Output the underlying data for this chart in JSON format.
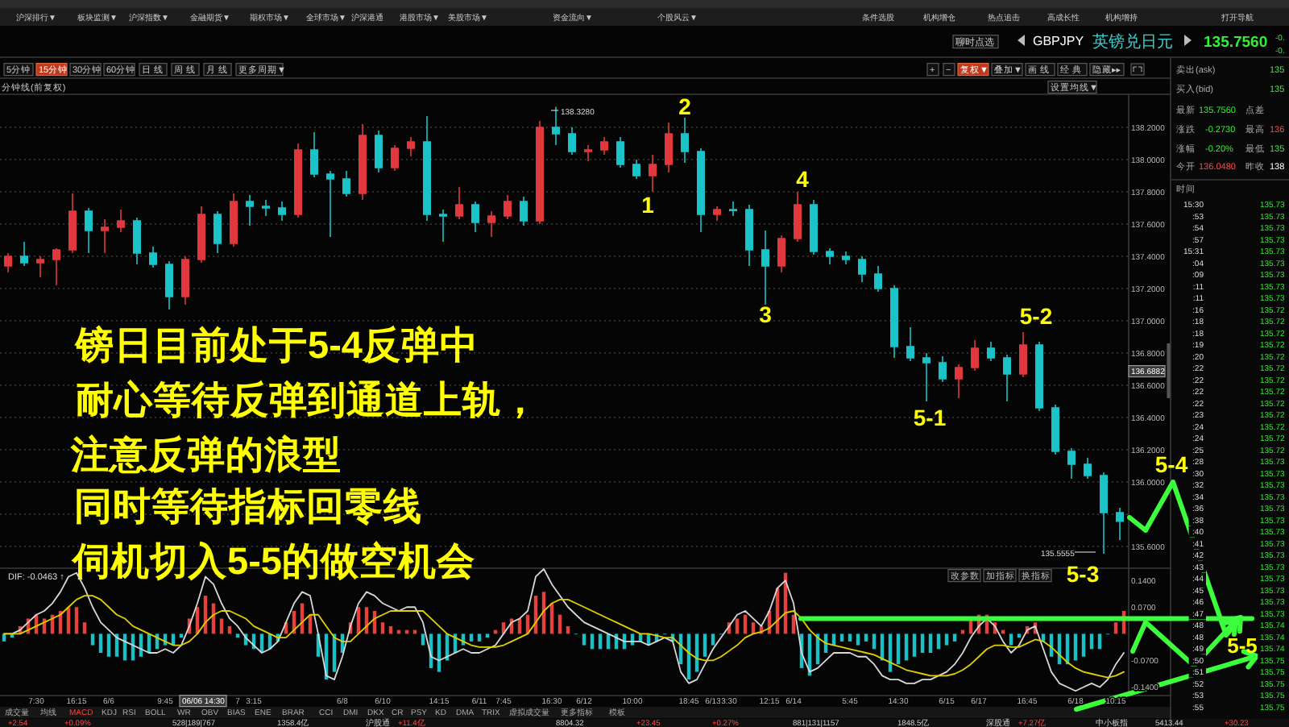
{
  "chart_data": [
    {
      "type": "candlestick",
      "title": "GBPJPY",
      "subtitle": "英镑兑日元",
      "categories": [
        null,
        null,
        null,
        null,
        null,
        null,
        null,
        null,
        null,
        null,
        null,
        null,
        null,
        null,
        null,
        null,
        null,
        null,
        null,
        null,
        null,
        null,
        null,
        null,
        null,
        null,
        null,
        null,
        null,
        null,
        null,
        null,
        null,
        null,
        null,
        null,
        null,
        null,
        null,
        null,
        null,
        null,
        null,
        null,
        null,
        null,
        null,
        null,
        null,
        null,
        null,
        null,
        null,
        null,
        null,
        null,
        null,
        null,
        null,
        null,
        null,
        null,
        null,
        null,
        null,
        null,
        null,
        null,
        null,
        null
      ],
      "ohlc": [
        [
          137.34,
          137.42,
          137.3,
          137.4
        ],
        [
          137.4,
          137.49,
          137.34,
          137.36
        ],
        [
          137.36,
          137.4,
          137.27,
          137.38
        ],
        [
          137.38,
          137.45,
          137.22,
          137.44
        ],
        [
          137.44,
          137.79,
          137.42,
          137.68
        ],
        [
          137.68,
          137.7,
          137.42,
          137.56
        ],
        [
          137.56,
          137.63,
          137.42,
          137.58
        ],
        [
          137.58,
          137.69,
          137.55,
          137.62
        ],
        [
          137.62,
          137.64,
          137.35,
          137.42
        ],
        [
          137.42,
          137.46,
          137.33,
          137.35
        ],
        [
          137.35,
          137.37,
          137.07,
          137.15
        ],
        [
          137.15,
          137.4,
          137.1,
          137.38
        ],
        [
          137.38,
          137.71,
          137.36,
          137.66
        ],
        [
          137.66,
          137.68,
          137.42,
          137.48
        ],
        [
          137.48,
          137.79,
          137.46,
          137.74
        ],
        [
          137.74,
          137.78,
          137.59,
          137.71
        ],
        [
          137.71,
          137.75,
          137.65,
          137.7
        ],
        [
          137.7,
          137.74,
          137.62,
          137.66
        ],
        [
          137.66,
          138.1,
          137.64,
          138.06
        ],
        [
          138.06,
          138.17,
          137.89,
          137.91
        ],
        [
          137.91,
          137.93,
          137.52,
          137.88
        ],
        [
          137.88,
          137.93,
          137.77,
          137.79
        ],
        [
          137.79,
          138.22,
          137.75,
          138.15
        ],
        [
          138.15,
          138.18,
          137.92,
          137.95
        ],
        [
          137.95,
          138.09,
          137.93,
          138.07
        ],
        [
          138.07,
          138.14,
          138.02,
          138.11
        ],
        [
          138.11,
          138.27,
          137.62,
          137.66
        ],
        [
          137.66,
          137.69,
          137.49,
          137.65
        ],
        [
          137.65,
          137.83,
          137.63,
          137.72
        ],
        [
          137.72,
          137.74,
          137.55,
          137.61
        ],
        [
          137.61,
          137.68,
          137.52,
          137.65
        ],
        [
          137.65,
          137.78,
          137.63,
          137.74
        ],
        [
          137.74,
          137.77,
          137.59,
          137.62
        ],
        [
          137.62,
          138.24,
          137.6,
          138.2
        ],
        [
          138.2,
          138.328,
          138.09,
          138.16
        ],
        [
          138.16,
          138.2,
          138.03,
          138.05
        ],
        [
          138.05,
          138.09,
          137.99,
          138.06
        ],
        [
          138.06,
          138.14,
          138.03,
          138.11
        ],
        [
          138.11,
          138.14,
          137.95,
          137.97
        ],
        [
          137.97,
          138.0,
          137.88,
          137.9
        ],
        [
          137.9,
          138.03,
          137.8,
          137.97
        ],
        [
          137.97,
          138.23,
          137.92,
          138.16
        ],
        [
          138.16,
          138.26,
          137.98,
          138.05
        ],
        [
          138.05,
          138.07,
          137.55,
          137.66
        ],
        [
          137.66,
          137.71,
          137.62,
          137.69
        ],
        [
          137.69,
          137.74,
          137.65,
          137.69
        ],
        [
          137.69,
          137.72,
          137.34,
          137.44
        ],
        [
          137.44,
          137.56,
          137.1,
          137.34
        ],
        [
          137.34,
          137.53,
          137.3,
          137.51
        ],
        [
          137.51,
          137.8,
          137.49,
          137.72
        ],
        [
          137.72,
          137.75,
          137.41,
          137.43
        ],
        [
          137.43,
          137.45,
          137.35,
          137.4
        ],
        [
          137.4,
          137.43,
          137.35,
          137.38
        ],
        [
          137.38,
          137.4,
          137.24,
          137.29
        ],
        [
          137.29,
          137.34,
          137.18,
          137.2
        ],
        [
          137.2,
          137.22,
          136.77,
          136.84
        ],
        [
          136.84,
          136.96,
          136.75,
          136.77
        ],
        [
          136.77,
          136.8,
          136.5,
          136.74
        ],
        [
          136.74,
          136.78,
          136.62,
          136.64
        ],
        [
          136.64,
          136.73,
          136.52,
          136.71
        ],
        [
          136.71,
          136.88,
          136.69,
          136.83
        ],
        [
          136.83,
          136.87,
          136.75,
          136.77
        ],
        [
          136.77,
          136.79,
          136.5,
          136.67
        ],
        [
          136.67,
          136.93,
          136.65,
          136.85
        ],
        [
          136.85,
          136.87,
          136.44,
          136.46
        ],
        [
          136.46,
          136.48,
          136.17,
          136.19
        ],
        [
          136.19,
          136.21,
          136.02,
          136.11
        ],
        [
          136.11,
          136.15,
          136.02,
          136.04
        ],
        [
          136.04,
          136.06,
          135.5555,
          135.81
        ],
        [
          135.81,
          135.84,
          135.64,
          135.756
        ]
      ],
      "colors": [
        "#e0383c",
        "#19c3c8",
        "#e0383c",
        "#e0383c",
        "#e0383c",
        "#19c3c8",
        "#e0383c",
        "#e0383c",
        "#19c3c8",
        "#19c3c8",
        "#19c3c8",
        "#e0383c",
        "#e0383c",
        "#19c3c8",
        "#e0383c",
        "#19c3c8",
        "#19c3c8",
        "#19c3c8",
        "#e0383c",
        "#19c3c8",
        "#19c3c8",
        "#19c3c8",
        "#e0383c",
        "#19c3c8",
        "#e0383c",
        "#e0383c",
        "#19c3c8",
        "#19c3c8",
        "#e0383c",
        "#19c3c8",
        "#e0383c",
        "#e0383c",
        "#19c3c8",
        "#e0383c",
        "#19c3c8",
        "#19c3c8",
        "#e0383c",
        "#e0383c",
        "#19c3c8",
        "#19c3c8",
        "#e0383c",
        "#e0383c",
        "#19c3c8",
        "#19c3c8",
        "#e0383c",
        "#19c3c8",
        "#19c3c8",
        "#19c3c8",
        "#e0383c",
        "#e0383c",
        "#19c3c8",
        "#19c3c8",
        "#19c3c8",
        "#19c3c8",
        "#19c3c8",
        "#19c3c8",
        "#19c3c8",
        "#19c3c8",
        "#19c3c8",
        "#e0383c",
        "#e0383c",
        "#19c3c8",
        "#19c3c8",
        "#e0383c",
        "#19c3c8",
        "#19c3c8",
        "#19c3c8",
        "#19c3c8",
        "#19c3c8",
        "#19c3c8"
      ],
      "ylim": [
        135.49,
        138.4
      ],
      "yticks": [
        {
          "value": 135.6,
          "label": "135.6000"
        },
        {
          "value": 135.8,
          "label": null
        },
        {
          "value": 136.0,
          "label": "136.0000"
        },
        {
          "value": 136.2,
          "label": "136.2000"
        },
        {
          "value": 136.4,
          "label": "136.4000"
        },
        {
          "value": 136.6,
          "label": "136.6000"
        },
        {
          "value": 136.8,
          "label": "136.8000"
        },
        {
          "value": 137.0,
          "label": "137.0000"
        },
        {
          "value": 137.2,
          "label": "137.2000"
        },
        {
          "value": 137.4,
          "label": "137.4000"
        },
        {
          "value": 137.6,
          "label": "137.6000"
        },
        {
          "value": 137.8,
          "label": "137.8000"
        },
        {
          "value": 138.0,
          "label": "138.0000"
        },
        {
          "value": 138.2,
          "label": "138.2000"
        }
      ],
      "grid": "y",
      "tick_labels": "y",
      "annotations": [
        "镑日目前处于5-4反弹中",
        "耐心等待反弹到通道上轨，",
        "注意反弹的浪型",
        "同时等待指标回零线",
        "伺机切入5-5的做空机会",
        "1",
        "2",
        "3",
        "4",
        "5-1",
        "5-2",
        "5-3",
        "5-4",
        "138.3280",
        "135.5555",
        "136.6882"
      ]
    },
    {
      "type": "bar",
      "categories": [
        null,
        null,
        null,
        null,
        "7:30",
        null,
        null,
        null,
        null,
        "16:15",
        null,
        null,
        null,
        "6/6",
        null,
        null,
        null,
        null,
        null,
        null,
        "9:45",
        null,
        null,
        null,
        null,
        null,
        null,
        null,
        null,
        "7",
        null,
        "3:15",
        null,
        null,
        null,
        null,
        null,
        null,
        null,
        null,
        null,
        null,
        "6/8",
        null,
        null,
        null,
        null,
        "6/10",
        null,
        null,
        null,
        null,
        null,
        null,
        "14:15",
        null,
        null,
        null,
        null,
        "6/11",
        null,
        null,
        "7:45",
        null,
        null,
        null,
        null,
        null,
        "16:30",
        null,
        null,
        null,
        "6/12",
        null,
        null,
        null,
        null,
        null,
        "10:00",
        null,
        null,
        null,
        null,
        null,
        null,
        "18:45",
        null,
        null,
        "6/13",
        null,
        "3:30",
        null,
        null,
        null,
        null,
        "12:15",
        null,
        null,
        "6/14",
        null,
        null,
        null,
        null,
        null,
        null,
        "5:45",
        null,
        null,
        null,
        null,
        null,
        "14:30",
        null,
        null,
        null,
        null,
        null,
        "6/15",
        null,
        null,
        null,
        "6/17",
        null,
        null,
        null,
        null,
        null,
        "16:45",
        null,
        null,
        null,
        null,
        null,
        "6/18",
        null,
        null,
        null,
        null,
        "10:15",
        null
      ],
      "series": [
        {
          "type": "bar",
          "values": [
            -0.02,
            -0.01,
            0.02,
            0.04,
            0.05,
            0.04,
            0.05,
            0.06,
            0.07,
            0.07,
            0.03,
            -0.03,
            -0.05,
            -0.06,
            -0.06,
            -0.07,
            -0.07,
            -0.06,
            -0.05,
            -0.04,
            -0.03,
            -0.03,
            -0.01,
            0.04,
            0.07,
            0.1,
            0.08,
            0.04,
            0.02,
            -0.01,
            -0.03,
            -0.04,
            -0.05,
            -0.04,
            -0.02,
            0.03,
            0.06,
            0.08,
            0.05,
            -0.06,
            -0.12,
            -0.1,
            -0.05,
            0.03,
            0.07,
            0.07,
            0.06,
            0.03,
            0.02,
            0.01,
            0.01,
            0.01,
            -0.03,
            -0.09,
            -0.1,
            -0.07,
            -0.05,
            -0.03,
            -0.02,
            -0.02,
            -0.01,
            0.01,
            0.03,
            0.04,
            0.04,
            0.05,
            0.1,
            0.11,
            0.08,
            0.05,
            0.02,
            0.0,
            -0.03,
            -0.04,
            -0.04,
            -0.04,
            -0.04,
            -0.04,
            -0.03,
            -0.02,
            -0.03,
            -0.02,
            0.0,
            -0.02,
            -0.08,
            -0.12,
            -0.1,
            -0.06,
            -0.03,
            0.0,
            0.03,
            0.04,
            0.05,
            0.03,
            0.02,
            0.06,
            0.12,
            0.16,
            0.05,
            -0.09,
            -0.11,
            -0.08,
            -0.05,
            -0.03,
            -0.02,
            -0.02,
            -0.03,
            -0.02,
            -0.04,
            -0.07,
            -0.1,
            -0.08,
            -0.07,
            -0.06,
            -0.05,
            -0.05,
            -0.04,
            -0.03,
            -0.02,
            0.01,
            0.04,
            0.05,
            0.05,
            0.03,
            0.01,
            -0.03,
            -0.01,
            0.02,
            0.03,
            -0.02,
            -0.06,
            -0.08,
            -0.08,
            -0.07,
            -0.06,
            -0.04,
            -0.04,
            0.0,
            0.03,
            0.06
          ],
          "colors": [
            "#18c0c8",
            "#18c0c8",
            "#e8413c",
            "#e8413c",
            "#e8413c",
            "#e8413c",
            "#e8413c",
            "#e8413c",
            "#e8413c",
            "#e8413c",
            "#e8413c",
            "#18c0c8",
            "#18c0c8",
            "#18c0c8",
            "#18c0c8",
            "#18c0c8",
            "#18c0c8",
            "#18c0c8",
            "#18c0c8",
            "#18c0c8",
            "#18c0c8",
            "#18c0c8",
            "#18c0c8",
            "#e8413c",
            "#e8413c",
            "#e8413c",
            "#e8413c",
            "#e8413c",
            "#e8413c",
            "#18c0c8",
            "#18c0c8",
            "#18c0c8",
            "#18c0c8",
            "#18c0c8",
            "#18c0c8",
            "#e8413c",
            "#e8413c",
            "#e8413c",
            "#e8413c",
            "#18c0c8",
            "#18c0c8",
            "#18c0c8",
            "#18c0c8",
            "#e8413c",
            "#e8413c",
            "#e8413c",
            "#e8413c",
            "#e8413c",
            "#e8413c",
            "#e8413c",
            "#e8413c",
            "#e8413c",
            "#18c0c8",
            "#18c0c8",
            "#18c0c8",
            "#18c0c8",
            "#18c0c8",
            "#18c0c8",
            "#18c0c8",
            "#18c0c8",
            "#18c0c8",
            "#e8413c",
            "#e8413c",
            "#e8413c",
            "#e8413c",
            "#e8413c",
            "#e8413c",
            "#e8413c",
            "#e8413c",
            "#e8413c",
            "#e8413c",
            "#18c0c8",
            "#18c0c8",
            "#18c0c8",
            "#18c0c8",
            "#18c0c8",
            "#18c0c8",
            "#18c0c8",
            "#18c0c8",
            "#18c0c8",
            "#18c0c8",
            "#18c0c8",
            "#18c0c8",
            "#18c0c8",
            "#18c0c8",
            "#18c0c8",
            "#18c0c8",
            "#18c0c8",
            "#18c0c8",
            "#18c0c8",
            "#e8413c",
            "#e8413c",
            "#e8413c",
            "#e8413c",
            "#e8413c",
            "#e8413c",
            "#e8413c",
            "#e8413c",
            "#e8413c",
            "#18c0c8",
            "#18c0c8",
            "#18c0c8",
            "#18c0c8",
            "#18c0c8",
            "#18c0c8",
            "#18c0c8",
            "#18c0c8",
            "#18c0c8",
            "#18c0c8",
            "#18c0c8",
            "#18c0c8",
            "#18c0c8",
            "#18c0c8",
            "#18c0c8",
            "#18c0c8",
            "#18c0c8",
            "#18c0c8",
            "#18c0c8",
            "#18c0c8",
            "#e8413c",
            "#e8413c",
            "#e8413c",
            "#e8413c",
            "#e8413c",
            "#e8413c",
            "#18c0c8",
            "#18c0c8",
            "#e8413c",
            "#e8413c",
            "#18c0c8",
            "#18c0c8",
            "#18c0c8",
            "#18c0c8",
            "#18c0c8",
            "#18c0c8",
            "#18c0c8",
            "#18c0c8",
            "#18c0c8",
            "#e8413c",
            "#e8413c"
          ]
        },
        {
          "type": "line",
          "color": "#d8d8d8",
          "values": [
            0.0,
            0.0,
            0.01,
            0.03,
            0.05,
            0.06,
            0.08,
            0.11,
            0.15,
            0.16,
            0.12,
            0.07,
            0.03,
            0.01,
            -0.01,
            -0.02,
            -0.03,
            -0.04,
            -0.05,
            -0.05,
            -0.04,
            -0.05,
            -0.03,
            0.02,
            0.08,
            0.15,
            0.13,
            0.08,
            0.04,
            0.02,
            -0.01,
            -0.03,
            -0.05,
            -0.04,
            -0.02,
            0.03,
            0.08,
            0.11,
            0.1,
            0.0,
            -0.11,
            -0.12,
            -0.06,
            0.02,
            0.08,
            0.11,
            0.1,
            0.08,
            0.07,
            0.06,
            0.07,
            0.07,
            0.03,
            -0.06,
            -0.07,
            -0.06,
            -0.05,
            -0.04,
            -0.05,
            -0.05,
            -0.04,
            -0.03,
            0.0,
            0.03,
            0.04,
            0.06,
            0.15,
            0.17,
            0.13,
            0.1,
            0.07,
            0.05,
            0.03,
            0.02,
            0.01,
            0.0,
            -0.01,
            -0.02,
            -0.02,
            -0.02,
            -0.03,
            -0.02,
            -0.01,
            -0.02,
            -0.1,
            -0.13,
            -0.12,
            -0.08,
            -0.04,
            -0.01,
            0.02,
            0.05,
            0.06,
            0.04,
            0.02,
            0.06,
            0.12,
            0.14,
            0.08,
            -0.05,
            -0.1,
            -0.09,
            -0.07,
            -0.05,
            -0.05,
            -0.05,
            -0.06,
            -0.06,
            -0.08,
            -0.11,
            -0.12,
            -0.12,
            -0.13,
            -0.13,
            -0.12,
            -0.12,
            -0.11,
            -0.1,
            -0.08,
            -0.05,
            -0.01,
            0.02,
            0.04,
            0.02,
            -0.02,
            -0.05,
            -0.03,
            0.01,
            0.02,
            -0.04,
            -0.1,
            -0.13,
            -0.14,
            -0.15,
            -0.14,
            -0.13,
            -0.14,
            -0.12,
            -0.08,
            -0.05
          ]
        },
        {
          "type": "line",
          "color": "#e0d000",
          "values": [
            0.0,
            0.0,
            0.0,
            0.01,
            0.02,
            0.03,
            0.04,
            0.05,
            0.07,
            0.09,
            0.1,
            0.1,
            0.09,
            0.07,
            0.05,
            0.04,
            0.02,
            0.01,
            0.0,
            -0.01,
            -0.02,
            -0.03,
            -0.03,
            -0.02,
            0.0,
            0.03,
            0.05,
            0.06,
            0.06,
            0.05,
            0.04,
            0.02,
            0.01,
            0.0,
            -0.01,
            -0.01,
            0.01,
            0.03,
            0.05,
            0.05,
            0.02,
            -0.01,
            -0.02,
            -0.02,
            0.0,
            0.02,
            0.04,
            0.05,
            0.06,
            0.06,
            0.06,
            0.06,
            0.06,
            0.04,
            0.02,
            0.0,
            -0.01,
            -0.02,
            -0.03,
            -0.035,
            -0.035,
            -0.035,
            -0.03,
            -0.02,
            -0.01,
            0.0,
            0.03,
            0.06,
            0.08,
            0.09,
            0.09,
            0.08,
            0.07,
            0.06,
            0.05,
            0.04,
            0.03,
            0.02,
            0.01,
            0.0,
            0.0,
            -0.005,
            -0.01,
            -0.01,
            -0.03,
            -0.05,
            -0.065,
            -0.07,
            -0.07,
            -0.06,
            -0.045,
            -0.03,
            -0.01,
            0.0,
            0.005,
            0.015,
            0.035,
            0.055,
            0.06,
            0.04,
            0.01,
            -0.01,
            -0.025,
            -0.03,
            -0.035,
            -0.04,
            -0.045,
            -0.05,
            -0.055,
            -0.065,
            -0.075,
            -0.085,
            -0.095,
            -0.1,
            -0.105,
            -0.11,
            -0.11,
            -0.11,
            -0.105,
            -0.095,
            -0.08,
            -0.06,
            -0.04,
            -0.03,
            -0.03,
            -0.035,
            -0.035,
            -0.025,
            -0.015,
            -0.02,
            -0.035,
            -0.055,
            -0.075,
            -0.09,
            -0.1,
            -0.105,
            -0.11,
            -0.115,
            -0.11,
            -0.1
          ]
        }
      ],
      "ylim": [
        -0.16,
        0.17
      ],
      "yticks": [
        {
          "value": -0.14,
          "label": "-0.1400"
        },
        {
          "value": -0.07,
          "label": "-0.0700"
        },
        {
          "value": 0.07,
          "label": "0.0700"
        },
        {
          "value": 0.14,
          "label": "0.1400"
        }
      ],
      "ref_lines": [
        {
          "axis": "y",
          "value": 0.04,
          "color": "#3cff3c"
        }
      ],
      "annotations": [
        "DIF: -0.0463 ↑",
        "改参数",
        "加指标",
        "换指标",
        "06/06 14:30",
        "5-5"
      ]
    },
    {
      "type": "other",
      "annotations": [
        "聊时点选",
        "135.7560",
        "-0.",
        "-0.",
        "卖出(ask)",
        "135",
        "买入(bid)",
        "135",
        "最新",
        "135.7560",
        "点差",
        "涨跌",
        "-0.2730",
        "最高",
        "136",
        "涨幅",
        "-0.20%",
        "最低",
        "135",
        "今开",
        "136.0480",
        "昨收",
        "138",
        "时间",
        "15:30",
        "135.73",
        ":53",
        "135.73",
        ":54",
        "135.73",
        ":57",
        "135.73",
        "15:31",
        "135.73",
        ":04",
        "135.73",
        ":09",
        "135.73",
        ":11",
        "135.73",
        ":11",
        "135.73",
        ":16",
        "135.72",
        ":18",
        "135.72",
        ":18",
        "135.72",
        ":19",
        "135.72",
        ":20",
        "135.72",
        ":22",
        "135.72",
        ":22",
        "135.72",
        ":22",
        "135.72",
        ":22",
        "135.72",
        ":23",
        "135.72",
        ":24",
        "135.72",
        ":24",
        "135.72",
        ":25",
        "135.72",
        ":28",
        "135.73",
        ":30",
        "135.73",
        ":32",
        "135.73",
        ":34",
        "135.73",
        ":36",
        "135.73",
        ":38",
        "135.73",
        ":40",
        "135.73",
        ":41",
        "135.73",
        ":42",
        "135.73",
        ":43",
        "135.73",
        ":44",
        "135.73",
        ":45",
        "135.73",
        ":46",
        "135.73",
        ":47",
        "135.73",
        ":48",
        "135.74",
        ":48",
        "135.74",
        ":49",
        "135.74",
        ":50",
        "135.75",
        ":51",
        "135.75",
        ":52",
        "135.75",
        ":53",
        "135.75",
        ":55",
        "135.75"
      ]
    },
    {
      "type": "other",
      "annotations": [
        "沪深排行▼",
        "板块监测▼",
        "沪深指数▼",
        "金融期货▼",
        "期权市场▼",
        "全球市场▼",
        "沪深港通",
        "港股市场▼",
        "美股市场▼",
        "资金流向▼",
        "个股风云▼",
        "条件选股",
        "机构增仓",
        "热点追击",
        "高成长性",
        "机构增持",
        "打开导航",
        "5分钟",
        "15分钟",
        "30分钟",
        "60分钟",
        "日 线",
        "周 线",
        "月 线",
        "更多周期▼",
        "+",
        "−",
        "复权▼",
        "叠加▼",
        "画 线",
        "经 典",
        "隐藏▸▸",
        "分钟线(前复权)",
        "设置均线▼",
        "成交量",
        "均线",
        "MACD",
        "KDJ",
        "RSI",
        "BOLL",
        "WR",
        "OBV",
        "BIAS",
        "ENE",
        "BRAR",
        "CCI",
        "DMI",
        "DKX",
        "CR",
        "PSY",
        "KD",
        "DMA",
        "TRIX",
        "虚拟成交量",
        "更多指标",
        "模板",
        "+2.54",
        "+0.09%",
        "528|189|767",
        "1358.4亿",
        "沪股通",
        "+11.4亿",
        "8804.32",
        "+23.45",
        "+0.27%",
        "881|131|1157",
        "1848.5亿",
        "深股通",
        "+7.27亿",
        "中小板指",
        "5413.44",
        "+30.23"
      ]
    }
  ]
}
